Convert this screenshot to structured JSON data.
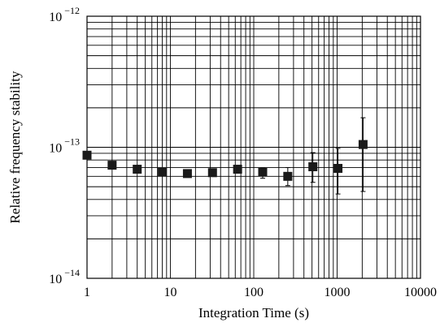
{
  "chart_data": {
    "type": "scatter",
    "title": "",
    "xlabel": "Integration Time (s)",
    "ylabel": "Relative frequency stability",
    "xscale": "log",
    "yscale": "log",
    "xlim": [
      1,
      10000
    ],
    "ylim": [
      1e-14,
      1e-12
    ],
    "grid": true,
    "x_ticks": [
      {
        "value": 1,
        "label": "1"
      },
      {
        "value": 10,
        "label": "10"
      },
      {
        "value": 100,
        "label": "100"
      },
      {
        "value": 1000,
        "label": "1000"
      },
      {
        "value": 10000,
        "label": "10000"
      }
    ],
    "y_ticks": [
      {
        "value": 1e-14,
        "base": "10",
        "exp": "−14"
      },
      {
        "value": 1e-13,
        "base": "10",
        "exp": "−13"
      },
      {
        "value": 1e-12,
        "base": "10",
        "exp": "−12"
      }
    ],
    "marker": "square",
    "marker_color": "#1a1a1a",
    "points": [
      {
        "x": 1,
        "y": 8.7e-14
      },
      {
        "x": 2,
        "y": 7.3e-14
      },
      {
        "x": 4,
        "y": 6.8e-14
      },
      {
        "x": 8,
        "y": 6.5e-14
      },
      {
        "x": 16,
        "y": 6.3e-14
      },
      {
        "x": 32,
        "y": 6.4e-14
      },
      {
        "x": 64,
        "y": 6.8e-14
      },
      {
        "x": 128,
        "y": 6.5e-14,
        "err_low": 5.8e-14,
        "err_high": 7e-14
      },
      {
        "x": 256,
        "y": 6e-14,
        "err_low": 5.1e-14,
        "err_high": 7e-14
      },
      {
        "x": 512,
        "y": 7.1e-14,
        "err_low": 5.4e-14,
        "err_high": 9.1e-14
      },
      {
        "x": 1024,
        "y": 6.9e-14,
        "err_low": 4.4e-14,
        "err_high": 9.8e-14
      },
      {
        "x": 2048,
        "y": 1.05e-13,
        "err_low": 4.6e-14,
        "err_high": 1.68e-13
      }
    ]
  }
}
